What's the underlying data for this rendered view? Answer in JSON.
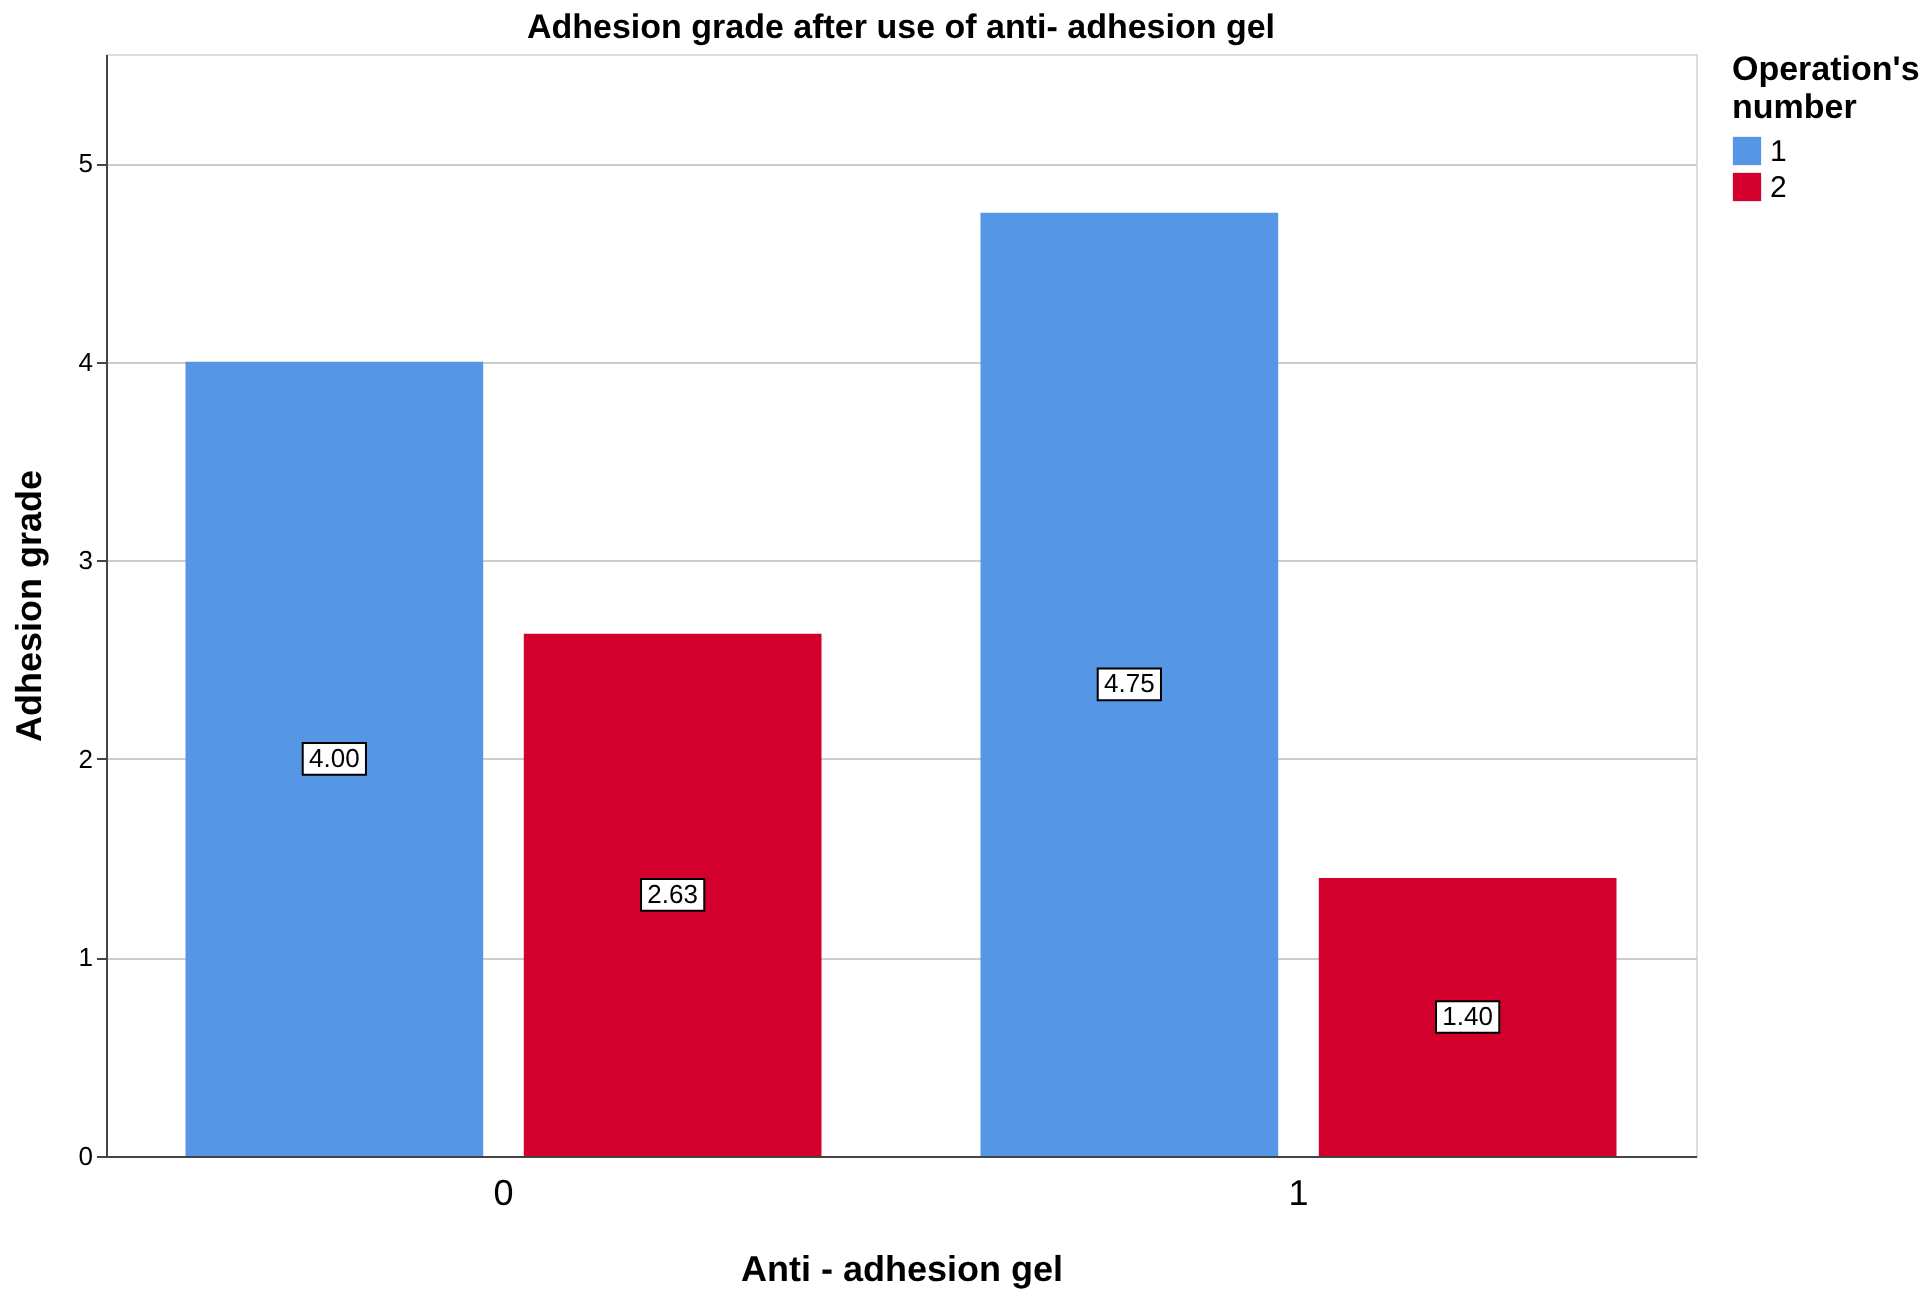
{
  "chart_data": {
    "type": "bar",
    "title": "Adhesion grade after use of anti- adhesion gel",
    "xlabel": "Anti - adhesion gel",
    "ylabel": "Adhesion grade",
    "legend_title": "Operation's number",
    "categories": [
      "0",
      "1"
    ],
    "series": [
      {
        "name": "1",
        "color": "#5596e5",
        "values": [
          4.0,
          4.75
        ],
        "value_labels": [
          "4.00",
          "4.75"
        ]
      },
      {
        "name": "2",
        "color": "#d3002e",
        "values": [
          2.63,
          1.4
        ],
        "value_labels": [
          "2.63",
          "1.40"
        ]
      }
    ],
    "ylim": [
      0,
      5.55
    ],
    "yticks": [
      0,
      1,
      2,
      3,
      4,
      5
    ],
    "grid": "y",
    "legend": "top right"
  }
}
